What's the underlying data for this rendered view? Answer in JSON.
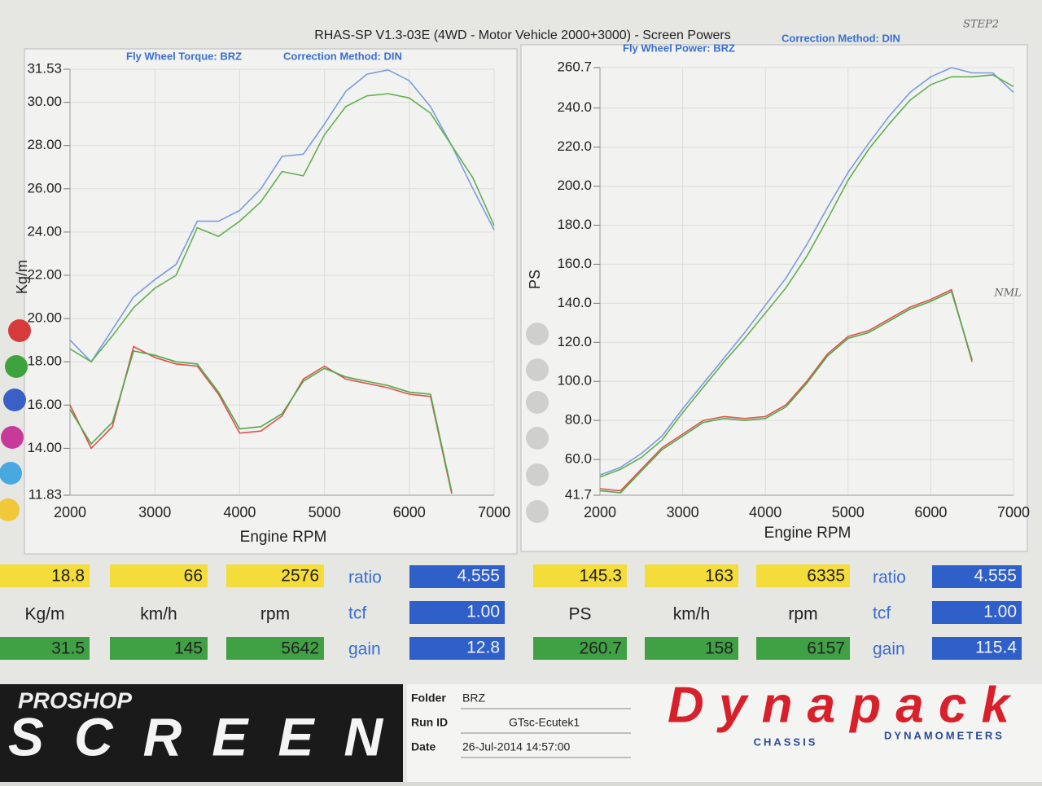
{
  "header": {
    "title": "RHAS-SP V1.3-03E  (4WD - Motor Vehicle 2000+3000) - Screen Powers"
  },
  "chart_data": [
    {
      "type": "line",
      "title": "Fly Wheel Torque: BRZ",
      "subtitle": "Correction Method: DIN",
      "xlabel": "Engine RPM",
      "ylabel": "Kg/m",
      "grid": true,
      "x": [
        2000,
        2250,
        2500,
        2750,
        3000,
        3250,
        3500,
        3750,
        4000,
        4250,
        4500,
        4750,
        5000,
        5250,
        5500,
        5750,
        6000,
        6250,
        6500,
        6750,
        7000
      ],
      "xlim": [
        2000,
        7000
      ],
      "xticks": [
        2000,
        3000,
        4000,
        5000,
        6000,
        7000
      ],
      "ylim": [
        11.83,
        31.53
      ],
      "yticks": [
        11.83,
        {
          "value": 14,
          "label": "14.00"
        },
        {
          "value": 16,
          "label": "16.00"
        },
        {
          "value": 18,
          "label": "18.00"
        },
        {
          "value": 20,
          "label": "20.00"
        },
        {
          "value": 22,
          "label": "22.00"
        },
        {
          "value": 24,
          "label": "24.00"
        },
        {
          "value": 26,
          "label": "26.00"
        },
        {
          "value": 28,
          "label": "28.00"
        },
        {
          "value": 30,
          "label": "30.00"
        },
        31.53
      ],
      "series": [
        {
          "color": "#7b9be0",
          "values": [
            19.0,
            18.0,
            19.5,
            21.0,
            21.8,
            22.5,
            24.5,
            24.5,
            25.0,
            26.0,
            27.5,
            27.6,
            29.0,
            30.5,
            31.3,
            31.5,
            31.0,
            29.8,
            28.0,
            26.0,
            24.1
          ]
        },
        {
          "color": "#62b04f",
          "values": [
            18.6,
            18.0,
            19.2,
            20.5,
            21.4,
            22.0,
            24.2,
            23.8,
            24.5,
            25.4,
            26.8,
            26.6,
            28.5,
            29.8,
            30.3,
            30.4,
            30.2,
            29.5,
            28.0,
            26.5,
            24.3
          ]
        },
        {
          "color": "#e0504a",
          "values": [
            16.0,
            14.0,
            15.0,
            18.7,
            18.2,
            17.9,
            17.8,
            16.5,
            14.7,
            14.8,
            15.5,
            17.2,
            17.8,
            17.2,
            17.0,
            16.8,
            16.5,
            16.4,
            11.9,
            null,
            null
          ]
        },
        {
          "color": "#4fa84a",
          "values": [
            15.8,
            14.2,
            15.2,
            18.5,
            18.3,
            18.0,
            17.9,
            16.6,
            14.9,
            15.0,
            15.6,
            17.1,
            17.7,
            17.3,
            17.1,
            16.9,
            16.6,
            16.5,
            12.0,
            null,
            null
          ]
        }
      ]
    },
    {
      "type": "line",
      "title": "Fly Wheel Power: BRZ",
      "subtitle": "Correction Method: DIN",
      "xlabel": "Engine RPM",
      "ylabel": "PS",
      "grid": true,
      "x": [
        2000,
        2250,
        2500,
        2750,
        3000,
        3250,
        3500,
        3750,
        4000,
        4250,
        4500,
        4750,
        5000,
        5250,
        5500,
        5750,
        6000,
        6250,
        6500,
        6750,
        7000
      ],
      "xlim": [
        2000,
        7000
      ],
      "xticks": [
        2000,
        3000,
        4000,
        5000,
        6000,
        7000
      ],
      "ylim": [
        41.7,
        260.7
      ],
      "yticks": [
        41.7,
        {
          "value": 60,
          "label": "60.0"
        },
        {
          "value": 80,
          "label": "80.0"
        },
        {
          "value": 100,
          "label": "100.0"
        },
        {
          "value": 120,
          "label": "120.0"
        },
        {
          "value": 140,
          "label": "140.0"
        },
        {
          "value": 160,
          "label": "160.0"
        },
        {
          "value": 180,
          "label": "180.0"
        },
        {
          "value": 200,
          "label": "200.0"
        },
        {
          "value": 220,
          "label": "220.0"
        },
        {
          "value": 240,
          "label": "240.0"
        },
        260.7
      ],
      "annotations": [
        "STEP2",
        "NML"
      ],
      "series": [
        {
          "color": "#7b9be0",
          "values": [
            52,
            56,
            63,
            72,
            86,
            99,
            112,
            125,
            139,
            153,
            170,
            189,
            207,
            222,
            236,
            248,
            256,
            260.7,
            258,
            258,
            248
          ]
        },
        {
          "color": "#62b04f",
          "values": [
            51,
            55,
            61,
            70,
            84,
            97,
            110,
            122,
            135,
            148,
            164,
            183,
            203,
            219,
            232,
            244,
            252,
            256,
            256,
            257,
            251
          ]
        },
        {
          "color": "#e0504a",
          "values": [
            45,
            44,
            55,
            66,
            73,
            80,
            82,
            81,
            82,
            88,
            100,
            114,
            123,
            126,
            132,
            138,
            142,
            147,
            110,
            null,
            null
          ]
        },
        {
          "color": "#4fa84a",
          "values": [
            44,
            43,
            54,
            65,
            72,
            79,
            81,
            80,
            81,
            87,
            99,
            113,
            122,
            125,
            131,
            137,
            141,
            146,
            111,
            null,
            null
          ]
        }
      ]
    }
  ],
  "stats": [
    {
      "top": [
        "18.8",
        "66",
        "2576"
      ],
      "units": [
        "Kg/m",
        "km/h",
        "rpm"
      ],
      "bottom": [
        "31.5",
        "145",
        "5642"
      ],
      "params": [
        {
          "label": "ratio",
          "value": "4.555"
        },
        {
          "label": "tcf",
          "value": "1.00"
        },
        {
          "label": "gain",
          "value": "12.8"
        }
      ]
    },
    {
      "top": [
        "145.3",
        "163",
        "6335"
      ],
      "units": [
        "PS",
        "km/h",
        "rpm"
      ],
      "bottom": [
        "260.7",
        "158",
        "6157"
      ],
      "params": [
        {
          "label": "ratio",
          "value": "4.555"
        },
        {
          "label": "tcf",
          "value": "1.00"
        },
        {
          "label": "gain",
          "value": "115.4"
        }
      ]
    }
  ],
  "footer": {
    "brand_top": "PROSHOP",
    "brand_main": "SCREEN",
    "fields": [
      {
        "label": "Folder",
        "value": "BRZ"
      },
      {
        "label": "Run ID",
        "value": "GTsc-Ecutek1"
      },
      {
        "label": "Date",
        "value": "26-Jul-2014  14:57:00"
      }
    ],
    "logo": "Dynapack",
    "logo_left": "CHASSIS",
    "logo_right": "DYNAMOMETERS"
  }
}
